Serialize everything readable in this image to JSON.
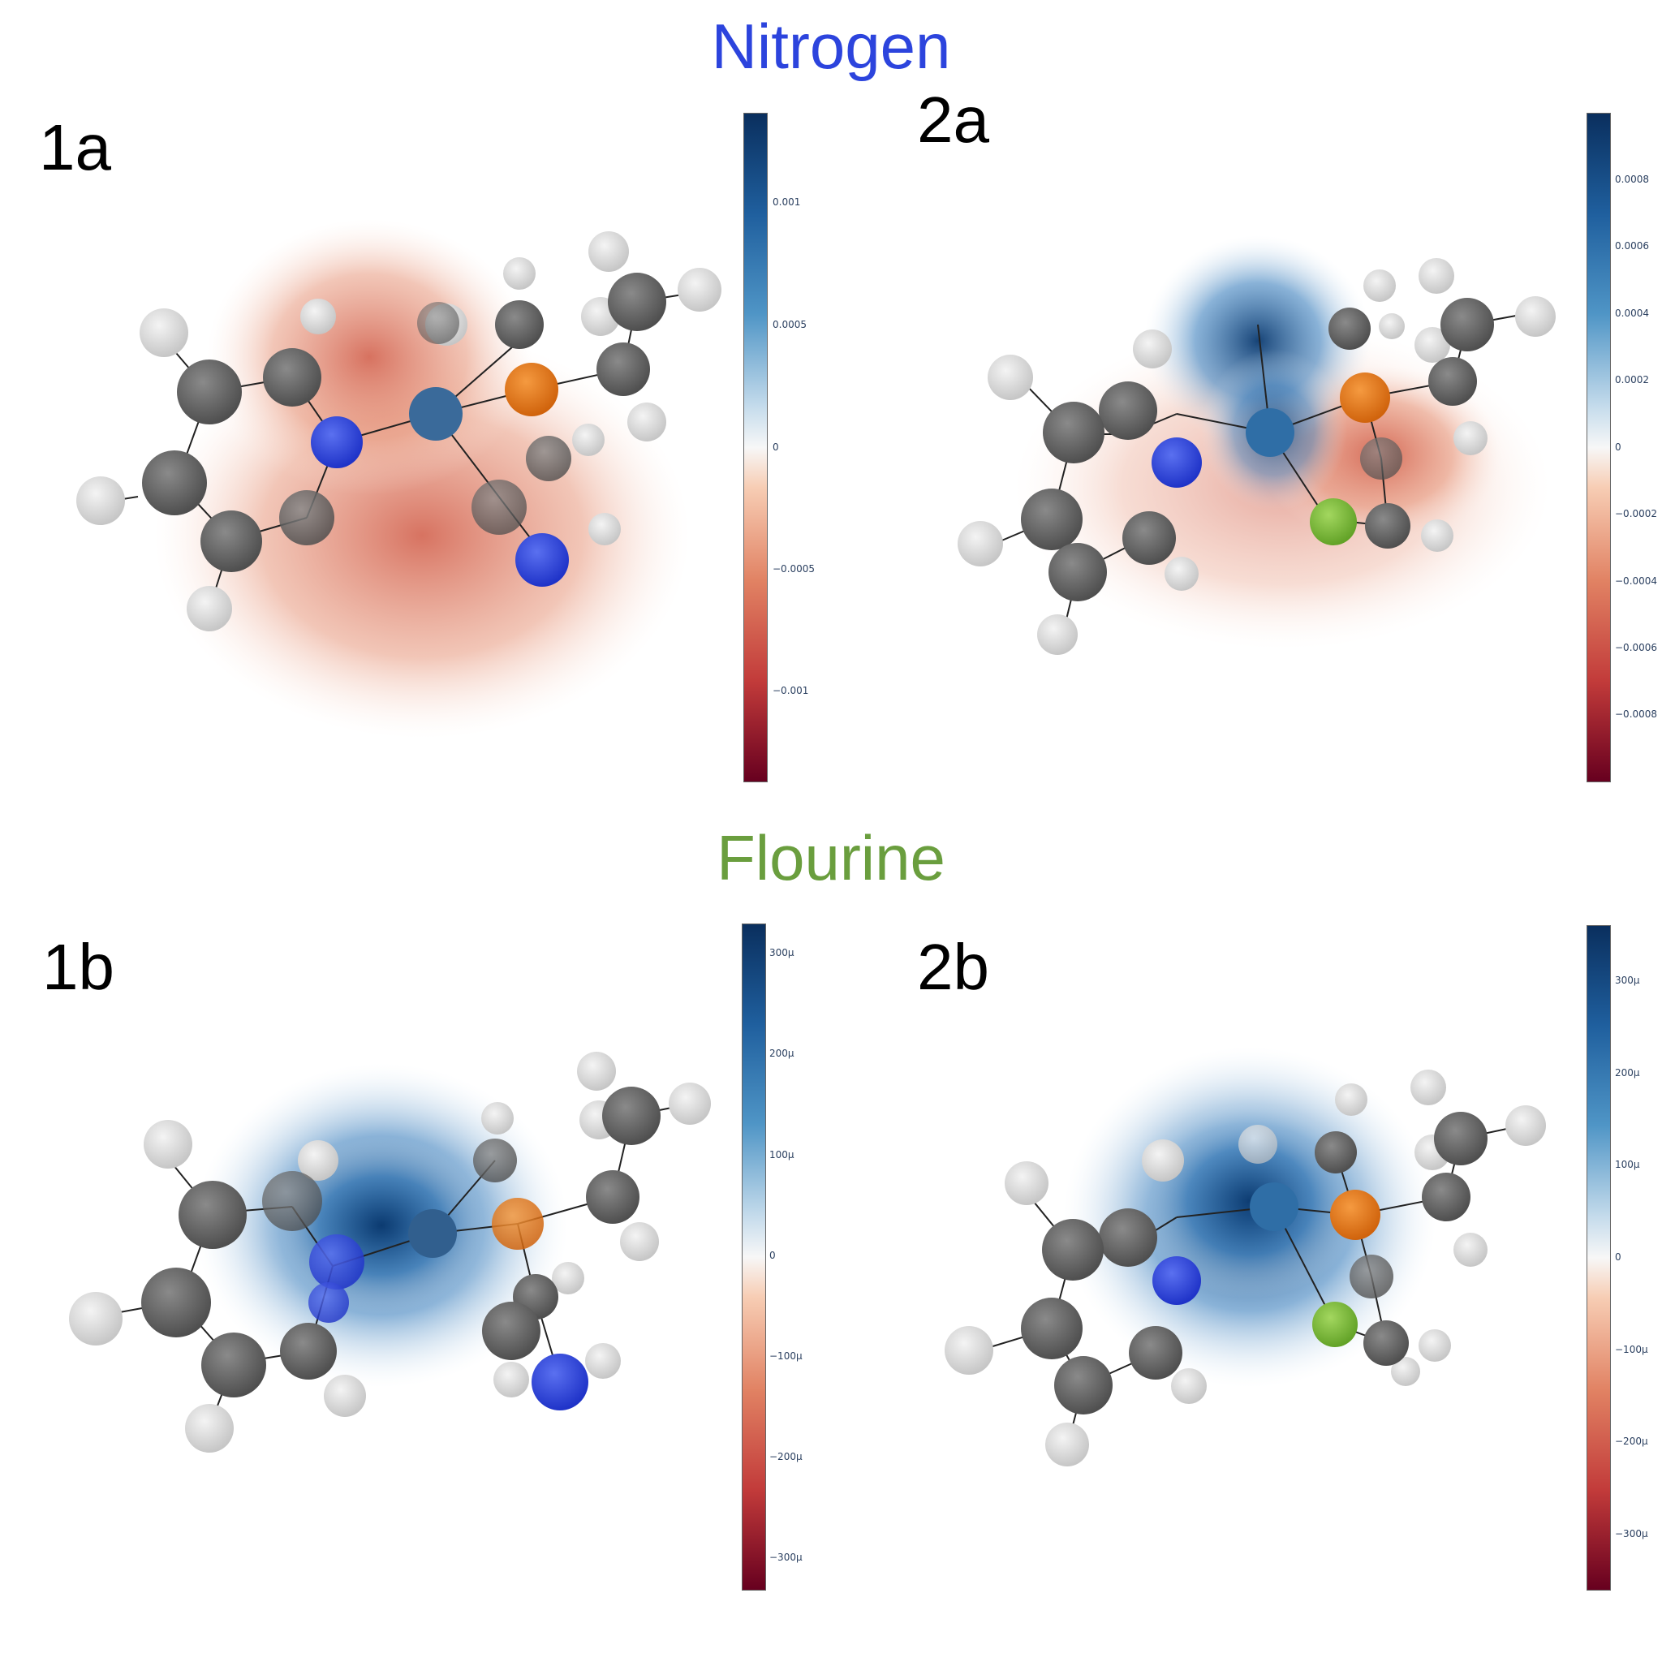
{
  "titles": {
    "nitrogen": "Nitrogen",
    "fluorine": "Flourine"
  },
  "colors": {
    "nitrogen_title": "#2c44dd",
    "fluorine_title": "#6a9e3e",
    "nitrogen_atom": "#2c44dd",
    "fluorine_atom": "#7dbb3a",
    "phosphorus_atom": "#e8761a",
    "carbon_atom": "#6b6b6b",
    "hydrogen_atom": "#e2e2e2"
  },
  "panels": [
    {
      "label": "1a",
      "colorscale": "RdBu",
      "ticks": [
        "0.001",
        "0.0005",
        "0",
        "−0.0005",
        "−0.001"
      ],
      "tick_values": [
        0.001,
        0.0005,
        0,
        -0.0005,
        -0.001
      ],
      "range": [
        -0.00138,
        0.00138
      ],
      "dominant_sign": "negative"
    },
    {
      "label": "2a",
      "colorscale": "RdBu",
      "ticks": [
        "0.0008",
        "0.0006",
        "0.0004",
        "0.0002",
        "0",
        "−0.0002",
        "−0.0004",
        "−0.0006",
        "−0.0008"
      ],
      "tick_values": [
        0.0008,
        0.0006,
        0.0004,
        0.0002,
        0,
        -0.0002,
        -0.0004,
        -0.0006,
        -0.0008
      ],
      "range": [
        -0.00101,
        0.00101
      ],
      "dominant_sign": "mixed"
    },
    {
      "label": "1b",
      "colorscale": "RdBu",
      "ticks": [
        "300μ",
        "200μ",
        "100μ",
        "0",
        "−100μ",
        "−200μ",
        "−300μ"
      ],
      "tick_values": [
        300,
        200,
        100,
        0,
        -100,
        -200,
        -300
      ],
      "range": [
        -330,
        330
      ],
      "dominant_sign": "positive"
    },
    {
      "label": "2b",
      "colorscale": "RdBu",
      "ticks": [
        "300μ",
        "200μ",
        "100μ",
        "0",
        "−100μ",
        "−200μ",
        "−300μ"
      ],
      "tick_values": [
        300,
        200,
        100,
        0,
        -100,
        -200,
        -300
      ],
      "range": [
        -360,
        360
      ],
      "dominant_sign": "positive"
    }
  ]
}
